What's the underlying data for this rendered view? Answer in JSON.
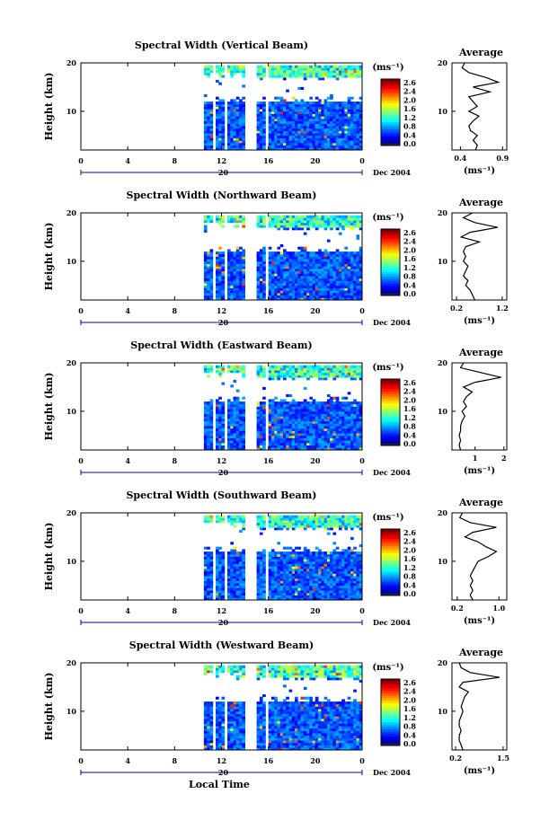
{
  "figure": {
    "xlabel": "Local Time",
    "date_label": "Dec 2004",
    "day_label": "20",
    "ylabel": "Height (km)",
    "colorbar_unit": "(ms⁻¹)",
    "colorbar_ticks": [
      "2.6",
      "2.4",
      "2.0",
      "1.6",
      "1.2",
      "0.8",
      "0.4",
      "0.0"
    ],
    "avg_title": "Average",
    "avg_unit": "(ms⁻¹)"
  },
  "chart_data": [
    {
      "type": "heatmap",
      "title": "Spectral Width (Vertical Beam)",
      "xlabel": "Local Time",
      "ylabel": "Height (km)",
      "x_ticks": [
        "0",
        "4",
        "8",
        "12",
        "16",
        "20",
        "0"
      ],
      "y_ticks": [
        "20",
        "10"
      ],
      "xlim": [
        0,
        24
      ],
      "ylim": [
        2,
        20
      ],
      "data_start_hour": 10.5,
      "gaps_hours": [
        [
          11.2,
          11.4
        ],
        [
          12.1,
          12.3
        ],
        [
          14.0,
          14.9
        ],
        [
          15.6,
          15.9
        ]
      ],
      "colorbar_range": [
        0.0,
        2.8
      ],
      "profile": {
        "title": "Average",
        "x_ticks": [
          "0.4",
          "0.9"
        ],
        "xlim": [
          0.3,
          0.95
        ],
        "heights": [
          20,
          19,
          18,
          17,
          16,
          15,
          14,
          13,
          12,
          11,
          10,
          9,
          8,
          7,
          6,
          5,
          4,
          3,
          2
        ],
        "values": [
          0.45,
          0.42,
          0.5,
          0.7,
          0.85,
          0.55,
          0.75,
          0.5,
          0.55,
          0.6,
          0.5,
          0.62,
          0.55,
          0.5,
          0.52,
          0.6,
          0.55,
          0.6,
          0.58
        ]
      }
    },
    {
      "type": "heatmap",
      "title": "Spectral Width (Northward Beam)",
      "xlabel": "Local Time",
      "ylabel": "Height (km)",
      "x_ticks": [
        "0",
        "4",
        "8",
        "12",
        "16",
        "20",
        "0"
      ],
      "y_ticks": [
        "20",
        "10"
      ],
      "xlim": [
        0,
        24
      ],
      "ylim": [
        2,
        20
      ],
      "data_start_hour": 10.5,
      "gaps_hours": [
        [
          11.2,
          11.4
        ],
        [
          12.1,
          12.3
        ],
        [
          14.0,
          14.9
        ],
        [
          15.6,
          15.9
        ]
      ],
      "colorbar_range": [
        0.0,
        2.8
      ],
      "profile": {
        "title": "Average",
        "x_ticks": [
          "0.2",
          "1.2"
        ],
        "xlim": [
          0.1,
          1.3
        ],
        "heights": [
          20,
          19,
          18,
          17,
          16,
          15,
          14,
          13,
          12,
          11,
          10,
          9,
          8,
          7,
          6,
          5,
          4,
          3,
          2
        ],
        "values": [
          0.55,
          0.35,
          0.6,
          1.1,
          0.5,
          0.3,
          0.7,
          0.4,
          0.35,
          0.4,
          0.35,
          0.45,
          0.4,
          0.35,
          0.45,
          0.4,
          0.5,
          0.55,
          0.6
        ]
      }
    },
    {
      "type": "heatmap",
      "title": "Spectral Width (Eastward Beam)",
      "xlabel": "Local Time",
      "ylabel": "Height (km)",
      "x_ticks": [
        "0",
        "4",
        "8",
        "12",
        "16",
        "20",
        "0"
      ],
      "y_ticks": [
        "20",
        "10"
      ],
      "xlim": [
        0,
        24
      ],
      "ylim": [
        2,
        20
      ],
      "data_start_hour": 10.5,
      "gaps_hours": [
        [
          11.2,
          11.4
        ],
        [
          12.1,
          12.3
        ],
        [
          14.0,
          14.9
        ],
        [
          15.6,
          15.9
        ]
      ],
      "colorbar_range": [
        0.0,
        2.8
      ],
      "profile": {
        "title": "Average",
        "x_ticks": [
          "1",
          "2"
        ],
        "xlim": [
          0.2,
          2.1
        ],
        "heights": [
          20,
          19,
          18,
          17,
          16,
          15,
          14,
          13,
          12,
          11,
          10,
          9,
          8,
          7,
          6,
          5,
          4,
          3,
          2
        ],
        "values": [
          0.6,
          0.5,
          1.2,
          1.9,
          1.0,
          0.6,
          0.9,
          0.7,
          0.6,
          0.7,
          0.55,
          0.65,
          0.55,
          0.5,
          0.5,
          0.45,
          0.5,
          0.45,
          0.5
        ]
      }
    },
    {
      "type": "heatmap",
      "title": "Spectral Width (Southward Beam)",
      "xlabel": "Local Time",
      "ylabel": "Height (km)",
      "x_ticks": [
        "0",
        "4",
        "8",
        "12",
        "16",
        "20",
        "0"
      ],
      "y_ticks": [
        "20",
        "10"
      ],
      "xlim": [
        0,
        24
      ],
      "ylim": [
        2,
        20
      ],
      "data_start_hour": 10.5,
      "gaps_hours": [
        [
          11.2,
          11.4
        ],
        [
          12.1,
          12.3
        ],
        [
          14.0,
          14.9
        ],
        [
          15.6,
          15.9
        ]
      ],
      "colorbar_range": [
        0.0,
        2.8
      ],
      "profile": {
        "title": "Average",
        "x_ticks": [
          "0.2",
          "1.0"
        ],
        "xlim": [
          0.1,
          1.15
        ],
        "heights": [
          20,
          19,
          18,
          17,
          16,
          15,
          14,
          13,
          12,
          11,
          10,
          9,
          8,
          7,
          6,
          5,
          4,
          3,
          2
        ],
        "values": [
          0.3,
          0.25,
          0.45,
          0.95,
          0.5,
          0.35,
          0.6,
          0.75,
          0.95,
          0.8,
          0.6,
          0.55,
          0.5,
          0.45,
          0.5,
          0.45,
          0.5,
          0.45,
          0.5
        ]
      }
    },
    {
      "type": "heatmap",
      "title": "Spectral Width (Westward Beam)",
      "xlabel": "Local Time",
      "ylabel": "Height (km)",
      "x_ticks": [
        "0",
        "4",
        "8",
        "12",
        "16",
        "20",
        "0"
      ],
      "y_ticks": [
        "20",
        "10"
      ],
      "xlim": [
        0,
        24
      ],
      "ylim": [
        2,
        20
      ],
      "data_start_hour": 10.5,
      "gaps_hours": [
        [
          11.2,
          11.4
        ],
        [
          12.1,
          12.3
        ],
        [
          14.0,
          14.9
        ],
        [
          15.6,
          15.9
        ]
      ],
      "colorbar_range": [
        0.0,
        2.8
      ],
      "profile": {
        "title": "Average",
        "x_ticks": [
          "0.2",
          "1.5"
        ],
        "xlim": [
          0.1,
          1.6
        ],
        "heights": [
          20,
          19,
          18,
          17,
          16,
          15,
          14,
          13,
          12,
          11,
          10,
          9,
          8,
          7,
          6,
          5,
          4,
          3,
          2
        ],
        "values": [
          0.3,
          0.35,
          0.6,
          1.4,
          0.4,
          0.3,
          0.55,
          0.45,
          0.4,
          0.35,
          0.4,
          0.35,
          0.3,
          0.3,
          0.35,
          0.3,
          0.3,
          0.35,
          0.4
        ]
      }
    }
  ]
}
